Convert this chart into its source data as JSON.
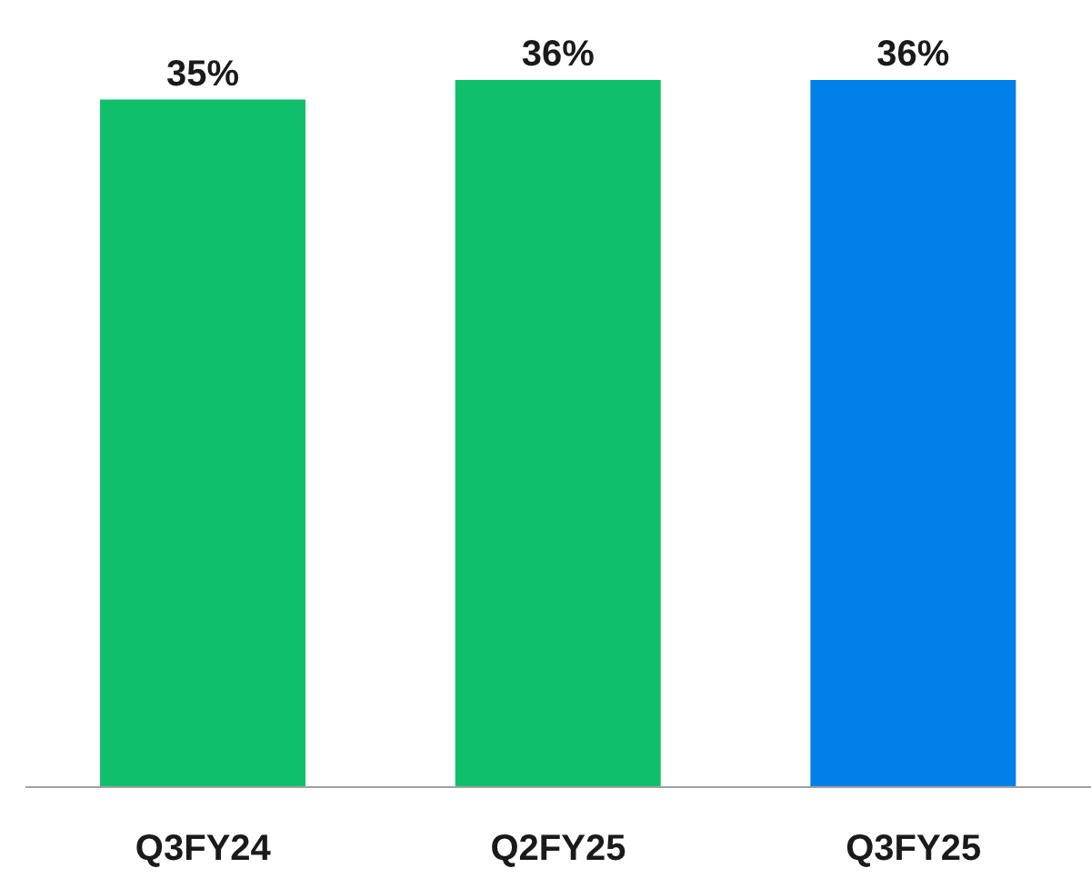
{
  "chart_data": {
    "type": "bar",
    "categories": [
      "Q3FY24",
      "Q2FY25",
      "Q3FY25"
    ],
    "values": [
      35,
      36,
      36
    ],
    "colors": [
      "#10bf6b",
      "#10bf6b",
      "#0080e8"
    ],
    "value_labels": [
      "35%",
      "36%",
      "36%"
    ],
    "tick_labels": "x"
  }
}
